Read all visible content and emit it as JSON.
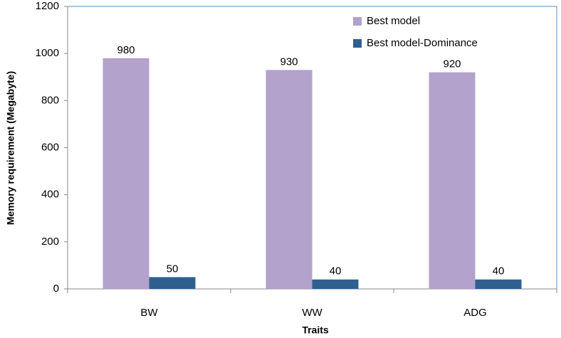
{
  "chart_data": {
    "type": "bar",
    "categories": [
      "BW",
      "WW",
      "ADG"
    ],
    "series": [
      {
        "name": "Best model",
        "color": "#b3a2cc",
        "values": [
          980,
          930,
          920
        ]
      },
      {
        "name": "Best model-Dominance",
        "color": "#2f5f8f",
        "values": [
          50,
          40,
          40
        ]
      }
    ],
    "ylabel": "Memory requirement (Megabyte)",
    "xlabel": "Traits",
    "ylim": [
      0,
      1200
    ],
    "yticks": [
      0,
      200,
      400,
      600,
      800,
      1000,
      1200
    ],
    "grid": false,
    "legend": "upper right"
  }
}
